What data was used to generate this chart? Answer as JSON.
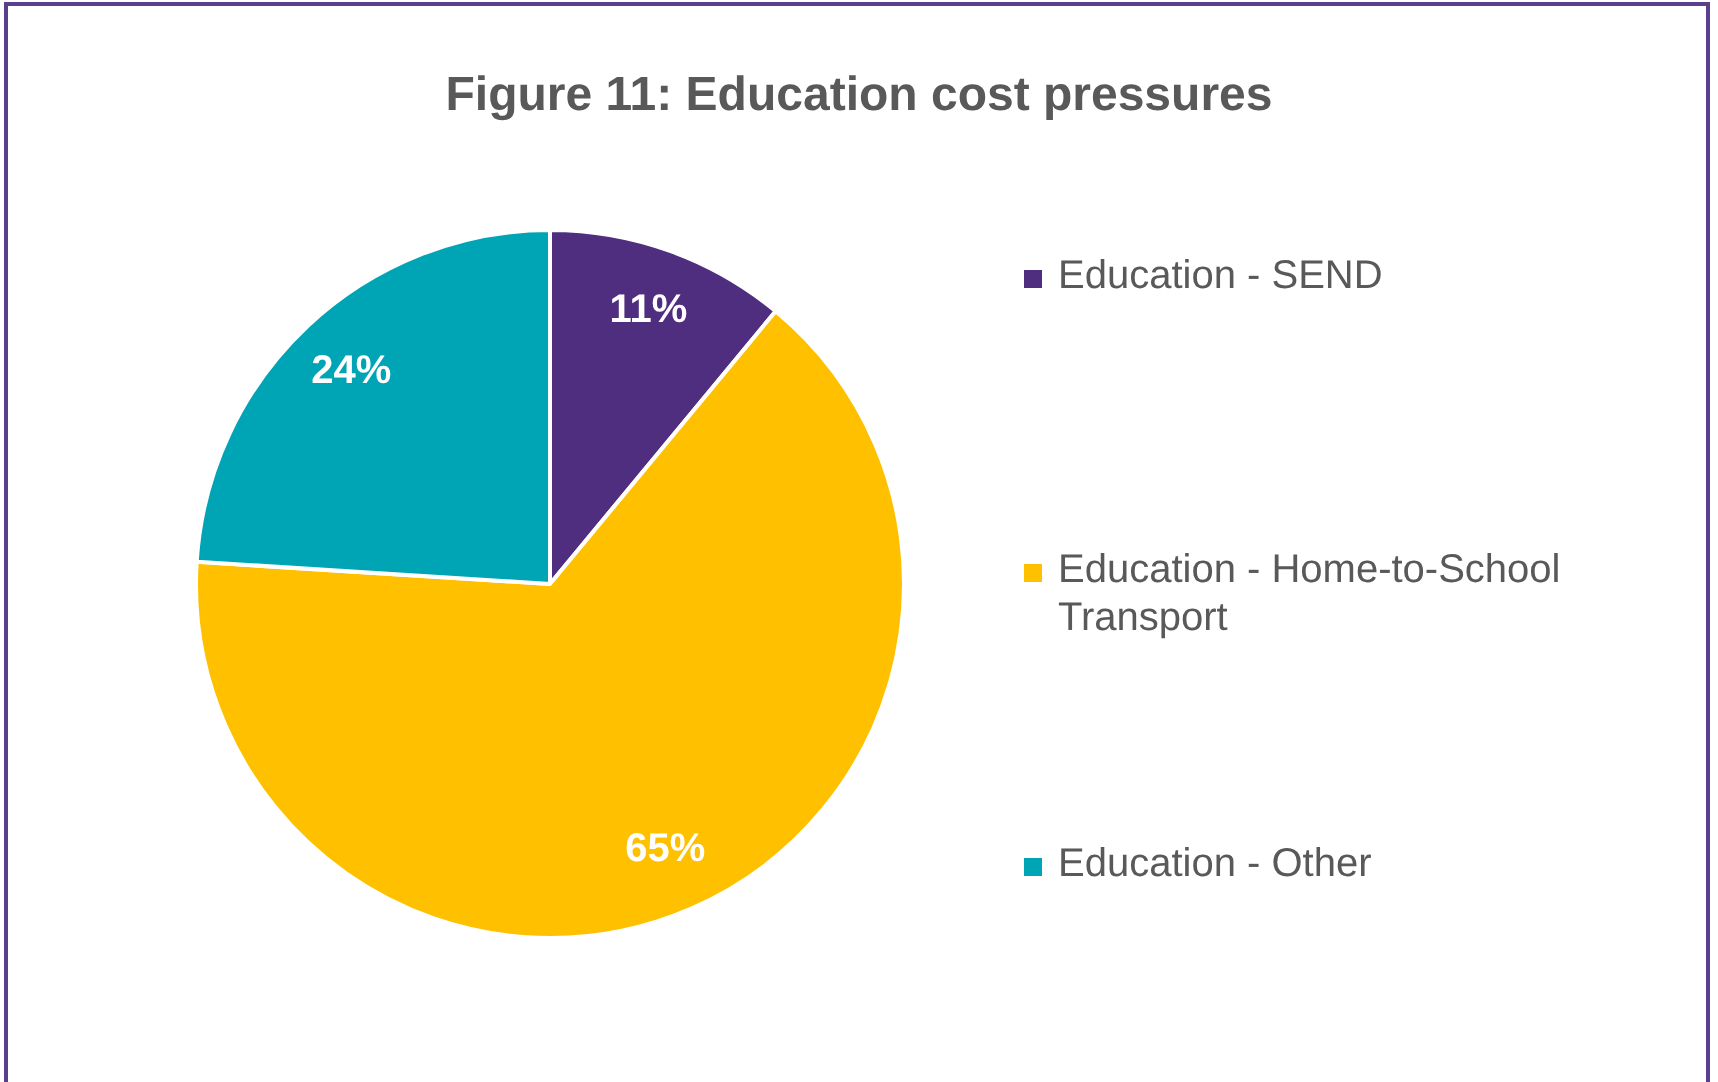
{
  "chart_data": {
    "type": "pie",
    "title": "Figure 11: Education cost pressures",
    "categories": [
      "Education - SEND",
      "Education - Home-to-School Transport",
      "Education - Other"
    ],
    "values": [
      11,
      65,
      24
    ],
    "colors": [
      "#4f2d7f",
      "#ffc000",
      "#00a5b5"
    ],
    "value_labels": [
      "11%",
      "65%",
      "24%"
    ],
    "legend": "right"
  }
}
